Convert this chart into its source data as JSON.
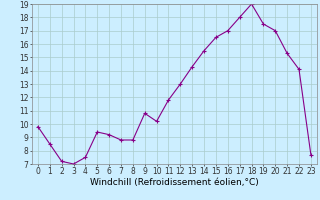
{
  "x": [
    0,
    1,
    2,
    3,
    4,
    5,
    6,
    7,
    8,
    9,
    10,
    11,
    12,
    13,
    14,
    15,
    16,
    17,
    18,
    19,
    20,
    21,
    22,
    23
  ],
  "y": [
    9.8,
    8.5,
    7.2,
    7.0,
    7.5,
    9.4,
    9.2,
    8.8,
    8.8,
    10.8,
    10.2,
    11.8,
    13.0,
    14.3,
    15.5,
    16.5,
    17.0,
    18.0,
    19.0,
    17.5,
    17.0,
    15.3,
    14.1,
    7.7
  ],
  "line_color": "#880088",
  "marker": "+",
  "marker_color": "#880088",
  "bg_color": "#cceeff",
  "grid_color": "#aacccc",
  "xlabel": "Windchill (Refroidissement éolien,°C)",
  "ylim": [
    7,
    19
  ],
  "xlim_min": -0.5,
  "xlim_max": 23.5,
  "yticks": [
    7,
    8,
    9,
    10,
    11,
    12,
    13,
    14,
    15,
    16,
    17,
    18,
    19
  ],
  "xticks": [
    0,
    1,
    2,
    3,
    4,
    5,
    6,
    7,
    8,
    9,
    10,
    11,
    12,
    13,
    14,
    15,
    16,
    17,
    18,
    19,
    20,
    21,
    22,
    23
  ],
  "tick_label_fontsize": 5.5,
  "xlabel_fontsize": 6.5,
  "line_width": 0.8,
  "marker_size": 3.5
}
